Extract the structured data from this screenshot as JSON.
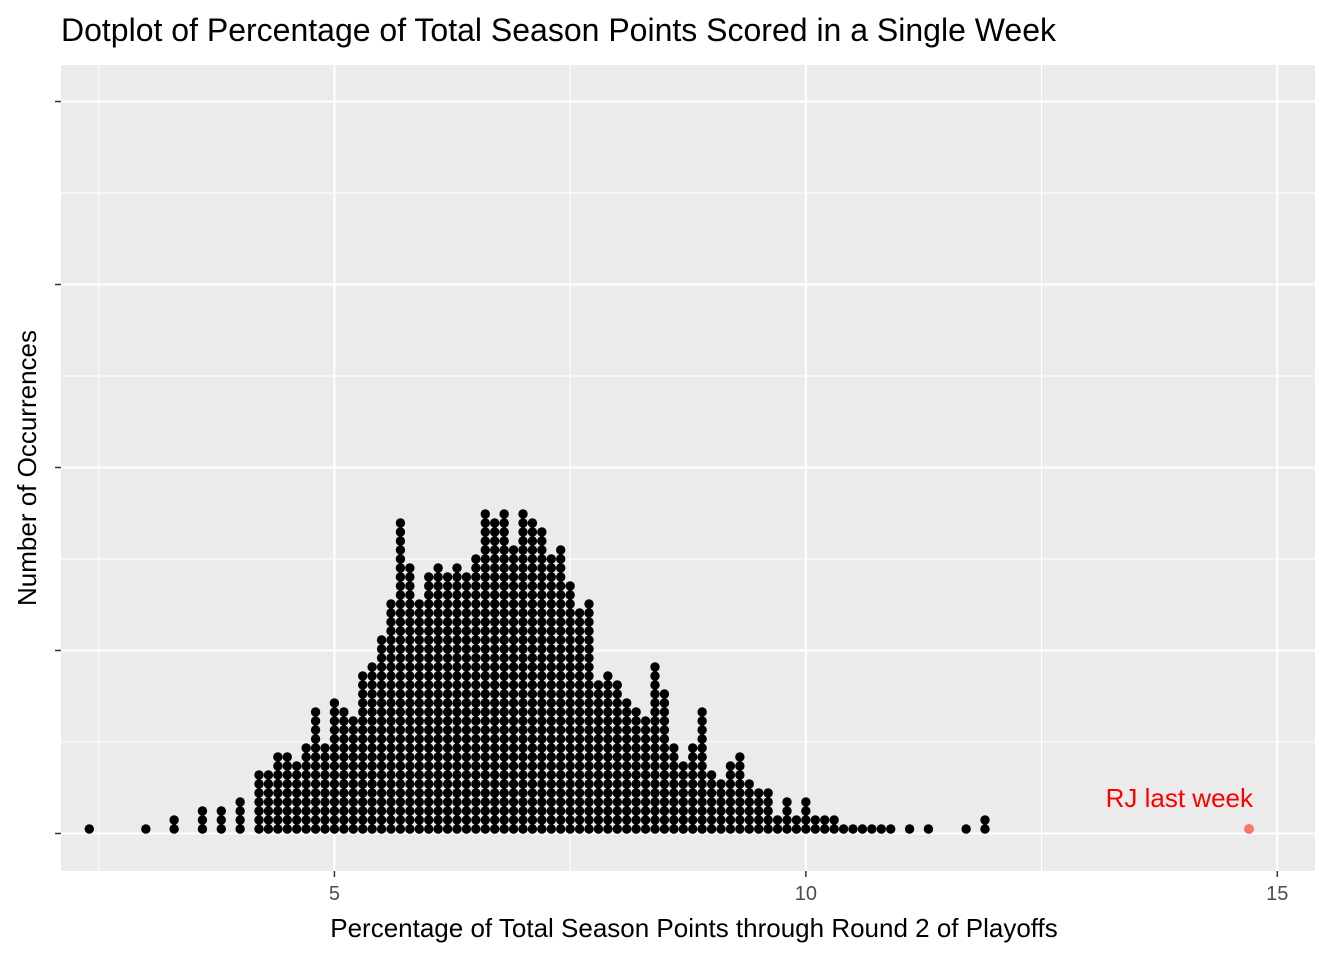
{
  "chart_data": {
    "type": "dotplot",
    "title": "Dotplot of Percentage of Total Season Points Scored in a Single Week",
    "xlabel": "Percentage of Total Season Points through Round 2 of Playoffs",
    "ylabel": "Number of Occurrences",
    "xlim": [
      2.1,
      15.4
    ],
    "xticks": [
      5,
      10,
      15
    ],
    "xtick_labels": [
      "5",
      "10",
      "15"
    ],
    "y_tick_labels_shown": false,
    "grid": true,
    "dot_color": "#000000",
    "bin_width": 0.1,
    "x": [
      2.4,
      3.0,
      3.3,
      3.6,
      3.8,
      4.0,
      4.2,
      4.3,
      4.4,
      4.5,
      4.6,
      4.7,
      4.8,
      4.9,
      5.0,
      5.1,
      5.2,
      5.3,
      5.4,
      5.5,
      5.6,
      5.7,
      5.8,
      5.9,
      6.0,
      6.1,
      6.2,
      6.3,
      6.4,
      6.5,
      6.6,
      6.7,
      6.8,
      6.9,
      7.0,
      7.1,
      7.2,
      7.3,
      7.4,
      7.5,
      7.6,
      7.7,
      7.8,
      7.9,
      8.0,
      8.1,
      8.2,
      8.3,
      8.4,
      8.5,
      8.6,
      8.7,
      8.8,
      8.9,
      9.0,
      9.1,
      9.2,
      9.3,
      9.4,
      9.5,
      9.6,
      9.7,
      9.8,
      9.9,
      10.0,
      10.1,
      10.2,
      10.3,
      10.4,
      10.5,
      10.6,
      10.7,
      10.8,
      10.9,
      11.1,
      11.3,
      11.7,
      11.9
    ],
    "counts": [
      1,
      1,
      2,
      3,
      3,
      4,
      7,
      7,
      9,
      9,
      8,
      10,
      14,
      10,
      15,
      14,
      13,
      18,
      19,
      22,
      26,
      35,
      30,
      26,
      29,
      30,
      29,
      30,
      29,
      31,
      36,
      35,
      36,
      32,
      36,
      35,
      34,
      31,
      32,
      28,
      25,
      26,
      17,
      18,
      17,
      15,
      14,
      13,
      19,
      16,
      10,
      8,
      10,
      14,
      7,
      6,
      8,
      9,
      6,
      5,
      5,
      2,
      4,
      2,
      4,
      2,
      2,
      2,
      1,
      1,
      1,
      1,
      1,
      1,
      1,
      1,
      1,
      2
    ],
    "highlight": {
      "x": 14.7,
      "count": 1,
      "label": "RJ last week",
      "label_color": "#ff0000",
      "point_color": "#f8766d"
    }
  }
}
